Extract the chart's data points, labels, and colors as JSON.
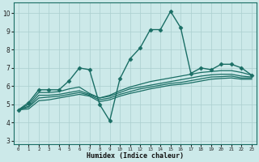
{
  "xlabel": "Humidex (Indice chaleur)",
  "ylabel": "",
  "xlim": [
    -0.5,
    23.5
  ],
  "ylim": [
    2.8,
    10.6
  ],
  "yticks": [
    3,
    4,
    5,
    6,
    7,
    8,
    9,
    10
  ],
  "xticks": [
    0,
    1,
    2,
    3,
    4,
    5,
    6,
    7,
    8,
    9,
    10,
    11,
    12,
    13,
    14,
    15,
    16,
    17,
    18,
    19,
    20,
    21,
    22,
    23
  ],
  "bg_color": "#cce9e9",
  "line_color": "#1a6e65",
  "grid_color": "#aacfcf",
  "lines": [
    {
      "x": [
        0,
        1,
        2,
        3,
        4,
        5,
        6,
        7,
        8,
        9,
        10,
        11,
        12,
        13,
        14,
        15,
        16,
        17,
        18,
        19,
        20,
        21,
        22,
        23
      ],
      "y": [
        4.7,
        5.1,
        5.8,
        5.8,
        5.8,
        6.3,
        7.0,
        6.9,
        5.0,
        4.1,
        6.4,
        7.5,
        8.1,
        9.1,
        9.1,
        10.1,
        9.2,
        6.7,
        7.0,
        6.9,
        7.2,
        7.2,
        7.0,
        6.6
      ],
      "marker": "D",
      "markersize": 2.5,
      "linewidth": 1.0,
      "zorder": 5
    },
    {
      "x": [
        0,
        1,
        2,
        3,
        4,
        5,
        6,
        7,
        8,
        9,
        10,
        11,
        12,
        13,
        14,
        15,
        16,
        17,
        18,
        19,
        20,
        21,
        22,
        23
      ],
      "y": [
        4.7,
        5.0,
        5.65,
        5.65,
        5.7,
        5.85,
        5.95,
        5.6,
        5.35,
        5.5,
        5.75,
        5.95,
        6.1,
        6.25,
        6.35,
        6.45,
        6.55,
        6.65,
        6.75,
        6.8,
        6.85,
        6.85,
        6.75,
        6.6
      ],
      "marker": null,
      "markersize": 0,
      "linewidth": 0.9,
      "zorder": 3
    },
    {
      "x": [
        0,
        1,
        2,
        3,
        4,
        5,
        6,
        7,
        8,
        9,
        10,
        11,
        12,
        13,
        14,
        15,
        16,
        17,
        18,
        19,
        20,
        21,
        22,
        23
      ],
      "y": [
        4.7,
        4.9,
        5.5,
        5.5,
        5.55,
        5.65,
        5.75,
        5.55,
        5.35,
        5.45,
        5.65,
        5.85,
        5.95,
        6.05,
        6.15,
        6.25,
        6.35,
        6.45,
        6.55,
        6.62,
        6.65,
        6.65,
        6.55,
        6.5
      ],
      "marker": null,
      "markersize": 0,
      "linewidth": 0.9,
      "zorder": 3
    },
    {
      "x": [
        0,
        1,
        2,
        3,
        4,
        5,
        6,
        7,
        8,
        9,
        10,
        11,
        12,
        13,
        14,
        15,
        16,
        17,
        18,
        19,
        20,
        21,
        22,
        23
      ],
      "y": [
        4.7,
        4.85,
        5.35,
        5.4,
        5.45,
        5.55,
        5.65,
        5.5,
        5.25,
        5.35,
        5.55,
        5.7,
        5.85,
        5.95,
        6.05,
        6.15,
        6.2,
        6.3,
        6.4,
        6.5,
        6.52,
        6.55,
        6.45,
        6.45
      ],
      "marker": null,
      "markersize": 0,
      "linewidth": 0.9,
      "zorder": 3
    },
    {
      "x": [
        0,
        1,
        2,
        3,
        4,
        5,
        6,
        7,
        8,
        9,
        10,
        11,
        12,
        13,
        14,
        15,
        16,
        17,
        18,
        19,
        20,
        21,
        22,
        23
      ],
      "y": [
        4.7,
        4.75,
        5.2,
        5.25,
        5.35,
        5.45,
        5.55,
        5.45,
        5.15,
        5.25,
        5.45,
        5.6,
        5.72,
        5.85,
        5.95,
        6.05,
        6.1,
        6.18,
        6.28,
        6.38,
        6.42,
        6.45,
        6.38,
        6.38
      ],
      "marker": null,
      "markersize": 0,
      "linewidth": 0.9,
      "zorder": 3
    }
  ]
}
